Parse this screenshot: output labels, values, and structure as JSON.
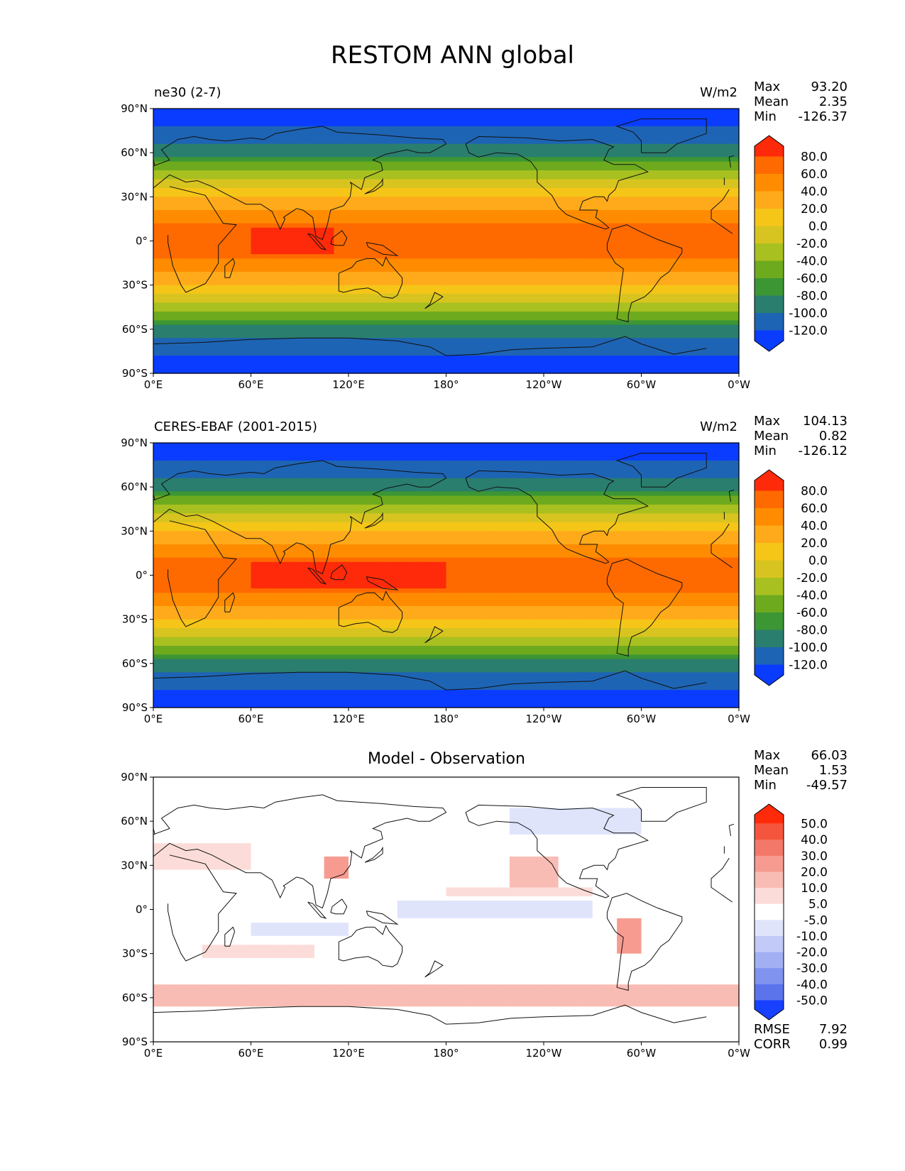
{
  "title": "RESTOM ANN global",
  "x_ticks": [
    "0°E",
    "60°E",
    "120°E",
    "180°",
    "120°W",
    "60°W",
    "0°W"
  ],
  "y_ticks": [
    "90°N",
    "60°N",
    "30°N",
    "0°",
    "30°S",
    "60°S",
    "90°S"
  ],
  "panels": [
    {
      "title_left": "ne30 (2-7)",
      "title_right": "W/m2",
      "title_center": "",
      "stats": [
        {
          "label": "Max",
          "value": "93.20"
        },
        {
          "label": "Mean",
          "value": "2.35"
        },
        {
          "label": "Min",
          "value": "-126.37"
        }
      ],
      "bottom_stats": []
    },
    {
      "title_left": "CERES-EBAF (2001-2015)",
      "title_right": "W/m2",
      "title_center": "",
      "stats": [
        {
          "label": "Max",
          "value": "104.13"
        },
        {
          "label": "Mean",
          "value": "0.82"
        },
        {
          "label": "Min",
          "value": "-126.12"
        }
      ],
      "bottom_stats": []
    },
    {
      "title_left": "",
      "title_right": "",
      "title_center": "Model - Observation",
      "stats": [
        {
          "label": "Max",
          "value": "66.03"
        },
        {
          "label": "Mean",
          "value": "1.53"
        },
        {
          "label": "Min",
          "value": "-49.57"
        }
      ],
      "bottom_stats": [
        {
          "label": "RMSE",
          "value": "7.92"
        },
        {
          "label": "CORR",
          "value": "0.99"
        }
      ]
    }
  ],
  "colorbar_levels_field": [
    "80.0",
    "60.0",
    "40.0",
    "20.0",
    "0.0",
    "-20.0",
    "-40.0",
    "-60.0",
    "-80.0",
    "-100.0",
    "-120.0"
  ],
  "colorbar_colors_field": [
    "#ff2a0a",
    "#ff6a00",
    "#ff8c00",
    "#ffaa1a",
    "#f5c518",
    "#d8c420",
    "#a8c020",
    "#6eaa1e",
    "#3c9634",
    "#2a7e6e",
    "#1e64b4",
    "#0a3cff"
  ],
  "colorbar_levels_diff": [
    "50.0",
    "40.0",
    "30.0",
    "20.0",
    "10.0",
    "5.0",
    "-5.0",
    "-10.0",
    "-20.0",
    "-30.0",
    "-40.0",
    "-50.0"
  ],
  "colorbar_colors_diff": [
    "#ff2a0a",
    "#f5553c",
    "#f4786a",
    "#f79b90",
    "#f9bcb4",
    "#fcdcd8",
    "#ffffff",
    "#dfe4fb",
    "#c2cbf7",
    "#a2b0f3",
    "#7f93ef",
    "#5b74ec",
    "#1840ff"
  ],
  "chart_data": [
    {
      "type": "heatmap",
      "title": "ne30 (2-7)",
      "units": "W/m2",
      "x_range": [
        "0°E",
        "0°W"
      ],
      "y_range": [
        "90°S",
        "90°N"
      ],
      "levels": [
        -120,
        -100,
        -80,
        -60,
        -40,
        -20,
        0,
        20,
        40,
        60,
        80
      ],
      "max": 93.2,
      "mean": 2.35,
      "min": -126.37
    },
    {
      "type": "heatmap",
      "title": "CERES-EBAF (2001-2015)",
      "units": "W/m2",
      "x_range": [
        "0°E",
        "0°W"
      ],
      "y_range": [
        "90°S",
        "90°N"
      ],
      "levels": [
        -120,
        -100,
        -80,
        -60,
        -40,
        -20,
        0,
        20,
        40,
        60,
        80
      ],
      "max": 104.13,
      "mean": 0.82,
      "min": -126.12
    },
    {
      "type": "heatmap",
      "title": "Model - Observation",
      "x_range": [
        "0°E",
        "0°W"
      ],
      "y_range": [
        "90°S",
        "90°N"
      ],
      "levels": [
        -50,
        -40,
        -30,
        -20,
        -10,
        -5,
        5,
        10,
        20,
        30,
        40,
        50
      ],
      "max": 66.03,
      "mean": 1.53,
      "min": -49.57,
      "rmse": 7.92,
      "corr": 0.99
    }
  ]
}
